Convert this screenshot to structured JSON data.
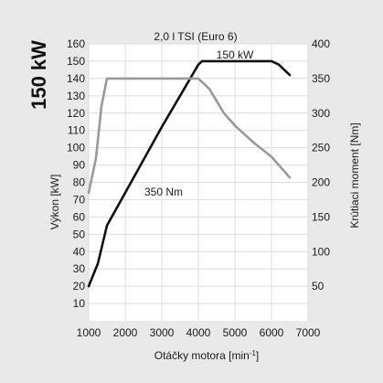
{
  "chart_data": {
    "type": "line",
    "title": "2,0 l TSI (Euro 6)",
    "headline": "150 kW",
    "xlabel_main": "Otáčky motora [min",
    "xlabel_sup": "-1",
    "xlabel_end": "]",
    "ylabel_left": "Výkon [kW]",
    "ylabel_right": "Krútiaci moment [Nm]",
    "xlim": [
      1000,
      7000
    ],
    "x_ticks": [
      1000,
      2000,
      3000,
      4000,
      5000,
      6000,
      7000
    ],
    "y_left_lim": [
      0,
      160
    ],
    "y_left_ticks": [
      10,
      20,
      30,
      40,
      50,
      60,
      70,
      80,
      90,
      100,
      110,
      120,
      130,
      140,
      150,
      160
    ],
    "y_right_lim": [
      0,
      400
    ],
    "y_right_ticks": [
      50,
      100,
      150,
      200,
      250,
      300,
      350,
      400
    ],
    "grid": true,
    "annotations": [
      {
        "text": "150 kW",
        "series": "power"
      },
      {
        "text": "350 Nm",
        "series": "torque"
      }
    ],
    "series": [
      {
        "id": "power",
        "axis": "left",
        "color": "#111111",
        "x": [
          1000,
          1250,
          1500,
          2000,
          2500,
          3000,
          3500,
          4000,
          4100,
          4500,
          5000,
          5500,
          6000,
          6200,
          6500
        ],
        "y": [
          20,
          33,
          55,
          74,
          93,
          112,
          130,
          148,
          150,
          150,
          150,
          150,
          150,
          148,
          142
        ]
      },
      {
        "id": "torque",
        "axis": "right",
        "color": "#999999",
        "x": [
          1000,
          1200,
          1350,
          1500,
          2000,
          3000,
          4000,
          4300,
          4700,
          5000,
          5500,
          6000,
          6500
        ],
        "y": [
          185,
          235,
          310,
          350,
          350,
          350,
          350,
          335,
          300,
          282,
          258,
          237,
          207
        ]
      }
    ]
  }
}
